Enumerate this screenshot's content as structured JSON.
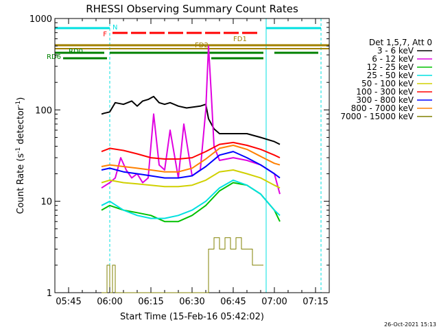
{
  "chart_data": {
    "type": "line",
    "title": "RHESSI Observing Summary Count Rates",
    "xlabel": "Start Time (15-Feb-16 05:42:02)",
    "ylabel_main": "Count Rate (s",
    "ylabel_sup1": "-1",
    "ylabel_mid": " detector",
    "ylabel_sup2": "-1",
    "ylabel_end": ")",
    "yscale": "log",
    "ylim": [
      1,
      1000
    ],
    "xlim": [
      "05:40",
      "07:20"
    ],
    "x_ticks": [
      "05:45",
      "06:00",
      "06:15",
      "06:30",
      "06:45",
      "07:00",
      "07:15"
    ],
    "y_ticks": [
      "1",
      "10",
      "100",
      "1000"
    ],
    "legend": {
      "position": "top-right",
      "header": "Det 1,5,7, Att 0",
      "entries": [
        {
          "name": "3 - 6 keV",
          "color": "#000000"
        },
        {
          "name": "6 - 12 keV",
          "color": "#e000e0"
        },
        {
          "name": "12 - 25 keV",
          "color": "#00c000"
        },
        {
          "name": "25 - 50 keV",
          "color": "#00e0e0"
        },
        {
          "name": "50 - 100 keV",
          "color": "#d0d000"
        },
        {
          "name": "100 - 300 keV",
          "color": "#ff0000"
        },
        {
          "name": "300 - 800 keV",
          "color": "#0000ff"
        },
        {
          "name": "800 - 7000 keV",
          "color": "#ff8000"
        },
        {
          "name": "7000 - 15000 keV",
          "color": "#808000"
        }
      ]
    },
    "series": [
      {
        "name": "3 - 6 keV",
        "color": "#000000",
        "x": [
          "05:57",
          "05:58",
          "06:00",
          "06:02",
          "06:05",
          "06:08",
          "06:10",
          "06:12",
          "06:14",
          "06:16",
          "06:18",
          "06:20",
          "06:22",
          "06:25",
          "06:28",
          "06:31",
          "06:33",
          "06:35",
          "06:36",
          "06:38",
          "06:40",
          "06:45",
          "06:50",
          "06:55",
          "07:00",
          "07:02"
        ],
        "y": [
          90,
          92,
          95,
          120,
          115,
          125,
          110,
          125,
          130,
          140,
          120,
          115,
          120,
          110,
          105,
          108,
          110,
          115,
          80,
          62,
          55,
          55,
          55,
          50,
          45,
          42
        ]
      },
      {
        "name": "6 - 12 keV",
        "color": "#e000e0",
        "x": [
          "05:57",
          "06:00",
          "06:02",
          "06:04",
          "06:06",
          "06:08",
          "06:10",
          "06:12",
          "06:14",
          "06:16",
          "06:18",
          "06:20",
          "06:22",
          "06:25",
          "06:27",
          "06:30",
          "06:33",
          "06:35",
          "06:36",
          "06:37",
          "06:38",
          "06:40",
          "06:45",
          "06:50",
          "06:55",
          "07:00",
          "07:02"
        ],
        "y": [
          14,
          16,
          18,
          30,
          22,
          18,
          20,
          16,
          18,
          90,
          25,
          22,
          60,
          18,
          70,
          19,
          22,
          100,
          500,
          150,
          40,
          28,
          30,
          28,
          25,
          20,
          12
        ]
      },
      {
        "name": "12 - 25 keV",
        "color": "#00c000",
        "x": [
          "05:57",
          "06:00",
          "06:05",
          "06:10",
          "06:15",
          "06:20",
          "06:25",
          "06:30",
          "06:35",
          "06:40",
          "06:45",
          "06:50",
          "06:55",
          "07:00",
          "07:02"
        ],
        "y": [
          8,
          9,
          8,
          7.5,
          7,
          6,
          6,
          7,
          9,
          13,
          16,
          15,
          12,
          8,
          6
        ]
      },
      {
        "name": "25 - 50 keV",
        "color": "#00e0e0",
        "x": [
          "05:57",
          "06:00",
          "06:05",
          "06:10",
          "06:15",
          "06:20",
          "06:25",
          "06:30",
          "06:35",
          "06:40",
          "06:45",
          "06:50",
          "06:55",
          "07:00",
          "07:02"
        ],
        "y": [
          9,
          10,
          8,
          7,
          6.5,
          6.5,
          7,
          8,
          10,
          14,
          17,
          15,
          12,
          8,
          7
        ]
      },
      {
        "name": "50 - 100 keV",
        "color": "#d0d000",
        "x": [
          "05:57",
          "06:00",
          "06:05",
          "06:10",
          "06:15",
          "06:20",
          "06:25",
          "06:30",
          "06:35",
          "06:40",
          "06:45",
          "06:50",
          "06:55",
          "07:00",
          "07:02"
        ],
        "y": [
          16,
          17,
          16,
          15.5,
          15,
          14.5,
          14.5,
          15,
          17,
          21,
          22,
          20,
          18,
          15,
          14
        ]
      },
      {
        "name": "100 - 300 keV",
        "color": "#ff0000",
        "x": [
          "05:57",
          "06:00",
          "06:05",
          "06:10",
          "06:15",
          "06:20",
          "06:25",
          "06:30",
          "06:35",
          "06:40",
          "06:45",
          "06:50",
          "06:55",
          "07:00",
          "07:02"
        ],
        "y": [
          35,
          38,
          36,
          33,
          30,
          29,
          29,
          30,
          35,
          42,
          44,
          41,
          37,
          32,
          30
        ]
      },
      {
        "name": "300 - 800 keV",
        "color": "#0000ff",
        "x": [
          "05:57",
          "06:00",
          "06:05",
          "06:10",
          "06:15",
          "06:20",
          "06:25",
          "06:30",
          "06:35",
          "06:40",
          "06:45",
          "06:50",
          "06:55",
          "07:00",
          "07:02"
        ],
        "y": [
          22,
          23,
          21,
          20,
          19,
          18,
          18,
          19,
          24,
          32,
          35,
          30,
          25,
          20,
          18
        ]
      },
      {
        "name": "800 - 7000 keV",
        "color": "#ff8000",
        "x": [
          "05:57",
          "06:00",
          "06:05",
          "06:10",
          "06:15",
          "06:20",
          "06:25",
          "06:30",
          "06:35",
          "06:40",
          "06:45",
          "06:50",
          "06:55",
          "07:00",
          "07:02"
        ],
        "y": [
          24,
          25,
          24,
          23,
          22,
          21,
          21,
          23,
          29,
          38,
          41,
          37,
          31,
          26,
          25
        ]
      },
      {
        "name": "7000 - 15000 keV",
        "color": "#808000",
        "x": [
          "05:57",
          "05:59",
          "06:00",
          "06:01",
          "06:02",
          "06:34",
          "06:36",
          "06:38",
          "06:40",
          "06:42",
          "06:44",
          "06:46",
          "06:48",
          "06:50",
          "06:52",
          "06:54",
          "06:56"
        ],
        "y": [
          1,
          2,
          1,
          2,
          1,
          1,
          3,
          4,
          3,
          4,
          3,
          4,
          3,
          3,
          2,
          2,
          2
        ]
      }
    ],
    "annotations": {
      "night": {
        "label": "N",
        "color": "#00e0e0"
      },
      "flare": {
        "label": "F",
        "color": "#ff0000"
      },
      "fd1": {
        "label": "FD1",
        "color": "#a08000"
      },
      "fd2": {
        "label": "FD2",
        "color": "#a08000"
      },
      "rd0": {
        "label": "RD0",
        "color": "#008000"
      },
      "rd6": {
        "label": "RD6",
        "color": "#008000"
      }
    },
    "footer_date": "26-Oct-2021 15:13"
  }
}
